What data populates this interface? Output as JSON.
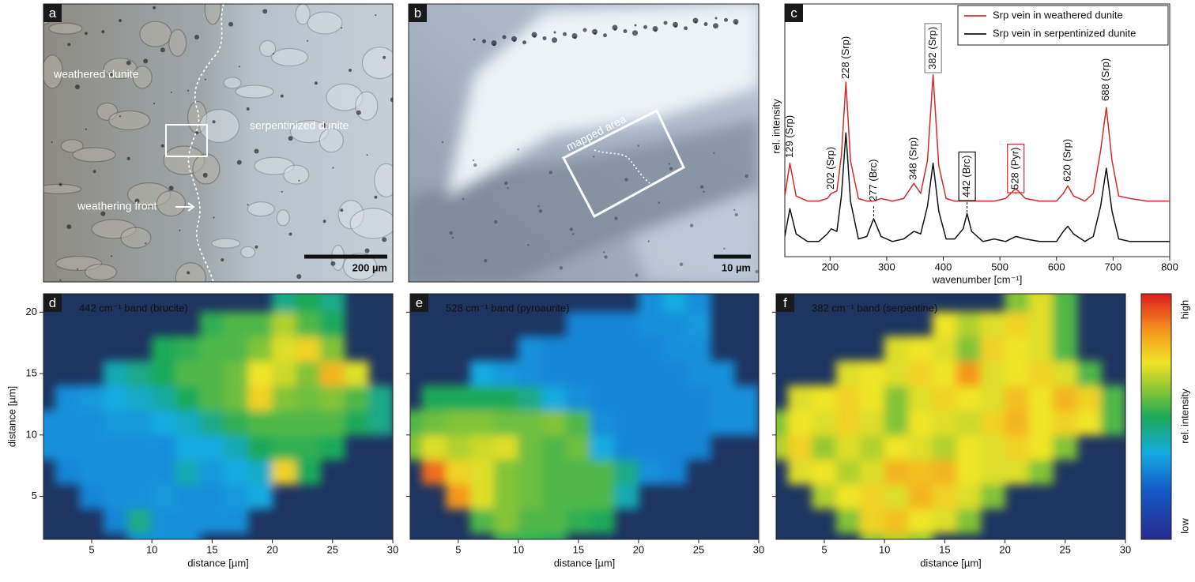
{
  "images": [
    {
      "label": "a",
      "annotations": [
        "weathered dunite",
        "serpentinized dunite",
        "weathering front"
      ],
      "scale_bar": "200 µm"
    },
    {
      "label": "b",
      "annotations": [
        "mapped area"
      ],
      "scale_bar": "10 µm"
    }
  ],
  "chart_data": [
    {
      "type": "line",
      "label": "c",
      "xlabel": "wavenumber [cm⁻¹]",
      "ylabel": "rel. intensity",
      "xlim": [
        120,
        800
      ],
      "xticks": [
        200,
        300,
        400,
        500,
        600,
        700,
        800
      ],
      "ylim": [
        0,
        100
      ],
      "legend": "top-right",
      "x": [
        120,
        129,
        140,
        160,
        180,
        195,
        202,
        212,
        220,
        228,
        236,
        250,
        265,
        277,
        290,
        310,
        330,
        348,
        360,
        372,
        382,
        392,
        405,
        420,
        435,
        442,
        450,
        470,
        490,
        510,
        528,
        545,
        570,
        600,
        612,
        620,
        630,
        650,
        665,
        678,
        688,
        698,
        710,
        730,
        760,
        800
      ],
      "series": [
        {
          "name": "Srp vein in weathered dunite",
          "color": "#d42a2a",
          "values": [
            24,
            37,
            24,
            22,
            22,
            23,
            25,
            26,
            40,
            69,
            38,
            23,
            22,
            22,
            23,
            22,
            23,
            29,
            25,
            38,
            72,
            36,
            23,
            22,
            22,
            22,
            22,
            22,
            22,
            23,
            27,
            23,
            22,
            22,
            25,
            28,
            24,
            22,
            25,
            42,
            59,
            38,
            24,
            23,
            22,
            22
          ]
        },
        {
          "name": "Srp vein in serpentinized dunite",
          "color": "#111111",
          "values": [
            8,
            19,
            9,
            6,
            6,
            9,
            11,
            10,
            24,
            49,
            22,
            7,
            8,
            15,
            8,
            6,
            7,
            10,
            9,
            20,
            37,
            18,
            7,
            7,
            11,
            17,
            10,
            6,
            7,
            6,
            8,
            7,
            6,
            6,
            10,
            12,
            9,
            6,
            8,
            20,
            35,
            18,
            7,
            6,
            6,
            6
          ]
        }
      ],
      "annotations": [
        {
          "text": "129 (Srp)",
          "x": 129,
          "color": "#8a8a8a"
        },
        {
          "text": "202 (Srp)",
          "x": 202,
          "color": "#8a8a8a"
        },
        {
          "text": "228 (Srp)",
          "x": 228,
          "color": "#8a8a8a"
        },
        {
          "text": "277 (Brc)",
          "x": 277,
          "color": "#111111",
          "dashed": true
        },
        {
          "text": "348 (Srp)",
          "x": 348,
          "color": "#8a8a8a"
        },
        {
          "text": "382 (Srp)",
          "x": 382,
          "color": "#8a8a8a",
          "boxed": true
        },
        {
          "text": "442 (Brc)",
          "x": 442,
          "color": "#111111",
          "boxed": true,
          "dashed": true
        },
        {
          "text": "528 (Pyr)",
          "x": 528,
          "color": "#d42a2a",
          "boxed": true,
          "dashed": true
        },
        {
          "text": "620 (Srp)",
          "x": 620,
          "color": "#8a8a8a"
        },
        {
          "text": "688 (Srp)",
          "x": 688,
          "color": "#8a8a8a"
        }
      ]
    },
    {
      "type": "heatmap",
      "label": "d",
      "title": "442 cm⁻¹ band (brucite)",
      "xlabel": "distance [µm]",
      "ylabel": "distance [µm]",
      "xlim": [
        1,
        30
      ],
      "ylim": [
        1.5,
        21.5
      ],
      "xticks": [
        5,
        10,
        15,
        20,
        25,
        30
      ],
      "yticks": [
        5,
        10,
        15,
        20
      ],
      "ytick_labels": true,
      "zlim": [
        0,
        1
      ],
      "x": [
        1,
        3,
        5,
        7,
        9,
        11,
        13,
        15,
        17,
        19,
        21,
        23,
        25,
        27,
        29
      ],
      "y": [
        1,
        3,
        5,
        7,
        9,
        11,
        13,
        15,
        17,
        19,
        21
      ],
      "z": [
        [
          null,
          null,
          null,
          null,
          0.3,
          0.3,
          0.3,
          null,
          null,
          null,
          null,
          null,
          null,
          null,
          null
        ],
        [
          null,
          null,
          null,
          0.28,
          0.45,
          0.3,
          0.3,
          0.3,
          0.3,
          null,
          null,
          null,
          null,
          null,
          null
        ],
        [
          null,
          null,
          0.28,
          0.3,
          0.3,
          0.32,
          0.3,
          0.3,
          0.32,
          0.35,
          null,
          null,
          null,
          null,
          null
        ],
        [
          null,
          0.28,
          0.3,
          0.3,
          0.3,
          0.3,
          0.4,
          0.32,
          0.35,
          0.38,
          0.75,
          0.5,
          null,
          null,
          null
        ],
        [
          0.3,
          0.3,
          0.3,
          0.3,
          0.3,
          0.3,
          0.35,
          0.35,
          0.4,
          0.5,
          0.52,
          0.52,
          0.5,
          null,
          null
        ],
        [
          0.3,
          0.3,
          0.3,
          0.32,
          0.32,
          0.35,
          0.38,
          0.45,
          0.52,
          0.55,
          0.55,
          0.55,
          0.55,
          0.5,
          0.45
        ],
        [
          null,
          0.3,
          0.32,
          0.35,
          0.38,
          0.42,
          0.5,
          0.55,
          0.58,
          0.75,
          0.6,
          0.58,
          0.6,
          0.55,
          0.45
        ],
        [
          null,
          null,
          null,
          0.4,
          0.45,
          0.5,
          0.55,
          0.55,
          0.58,
          0.72,
          0.68,
          0.6,
          0.8,
          0.7,
          null
        ],
        [
          null,
          null,
          null,
          null,
          null,
          0.5,
          0.52,
          0.55,
          0.55,
          0.6,
          0.7,
          0.75,
          0.6,
          null,
          null
        ],
        [
          null,
          null,
          null,
          null,
          null,
          null,
          null,
          0.52,
          0.55,
          0.55,
          0.65,
          0.55,
          0.5,
          null,
          null
        ],
        [
          null,
          null,
          null,
          null,
          null,
          null,
          null,
          null,
          null,
          null,
          0.45,
          0.5,
          0.45,
          null,
          null
        ]
      ]
    },
    {
      "type": "heatmap",
      "label": "e",
      "title": "528 cm⁻¹ band (pyroaurite)",
      "xlabel": "distance [µm]",
      "xlim": [
        1,
        30
      ],
      "ylim": [
        1.5,
        21.5
      ],
      "xticks": [
        5,
        10,
        15,
        20,
        25,
        30
      ],
      "yticks": [
        5,
        10,
        15,
        20
      ],
      "ytick_labels": false,
      "zlim": [
        0,
        1
      ],
      "x": [
        1,
        3,
        5,
        7,
        9,
        11,
        13,
        15,
        17,
        19,
        21,
        23,
        25,
        27,
        29
      ],
      "y": [
        1,
        3,
        5,
        7,
        9,
        11,
        13,
        15,
        17,
        19,
        21
      ],
      "z": [
        [
          null,
          null,
          null,
          null,
          0.5,
          0.52,
          0.5,
          null,
          null,
          null,
          null,
          null,
          null,
          null,
          null
        ],
        [
          null,
          null,
          null,
          0.55,
          0.6,
          0.55,
          0.55,
          0.52,
          0.5,
          null,
          null,
          null,
          null,
          null,
          null
        ],
        [
          null,
          null,
          0.85,
          0.7,
          0.6,
          0.58,
          0.55,
          0.55,
          0.55,
          0.4,
          null,
          null,
          null,
          null,
          null
        ],
        [
          null,
          0.9,
          0.75,
          0.7,
          0.6,
          0.58,
          0.55,
          0.55,
          0.55,
          0.45,
          0.3,
          0.28,
          null,
          null,
          null
        ],
        [
          0.6,
          0.7,
          0.65,
          0.68,
          0.7,
          0.58,
          0.55,
          0.58,
          0.35,
          0.28,
          0.28,
          0.28,
          0.28,
          null,
          null
        ],
        [
          0.55,
          0.58,
          0.6,
          0.6,
          0.58,
          0.58,
          0.6,
          0.55,
          0.3,
          0.28,
          0.28,
          0.28,
          0.28,
          0.3,
          0.3
        ],
        [
          null,
          0.5,
          0.5,
          0.5,
          0.5,
          0.45,
          0.35,
          0.3,
          0.28,
          0.28,
          0.28,
          0.28,
          0.28,
          0.3,
          0.3
        ],
        [
          null,
          null,
          null,
          0.35,
          0.32,
          0.3,
          0.28,
          0.28,
          0.28,
          0.28,
          0.28,
          0.28,
          0.3,
          0.3,
          null
        ],
        [
          null,
          null,
          null,
          null,
          null,
          0.3,
          0.28,
          0.28,
          0.28,
          0.28,
          0.28,
          0.3,
          0.3,
          null,
          null
        ],
        [
          null,
          null,
          null,
          null,
          null,
          null,
          null,
          0.28,
          0.28,
          0.28,
          0.3,
          0.3,
          0.32,
          null,
          null
        ],
        [
          null,
          null,
          null,
          null,
          null,
          null,
          null,
          null,
          null,
          null,
          0.3,
          0.35,
          0.3,
          null,
          null
        ]
      ]
    },
    {
      "type": "heatmap",
      "label": "f",
      "title": "382 cm⁻¹ band (serpentine)",
      "xlabel": "distance [µm]",
      "xlim": [
        1,
        30
      ],
      "ylim": [
        1.5,
        21.5
      ],
      "xticks": [
        5,
        10,
        15,
        20,
        25,
        30
      ],
      "yticks": [
        5,
        10,
        15,
        20
      ],
      "ytick_labels": false,
      "zlim": [
        0,
        1
      ],
      "x": [
        1,
        3,
        5,
        7,
        9,
        11,
        13,
        15,
        17,
        19,
        21,
        23,
        25,
        27,
        29
      ],
      "y": [
        1,
        3,
        5,
        7,
        9,
        11,
        13,
        15,
        17,
        19,
        21
      ],
      "z": [
        [
          null,
          null,
          null,
          null,
          0.6,
          0.65,
          0.6,
          null,
          null,
          null,
          null,
          null,
          null,
          null,
          null
        ],
        [
          null,
          null,
          null,
          0.6,
          0.75,
          0.78,
          0.72,
          0.7,
          0.6,
          null,
          null,
          null,
          null,
          null,
          null
        ],
        [
          null,
          null,
          0.65,
          0.72,
          0.75,
          0.7,
          0.8,
          0.75,
          0.7,
          0.6,
          null,
          null,
          null,
          null,
          null
        ],
        [
          null,
          0.7,
          0.72,
          0.65,
          0.7,
          0.8,
          0.78,
          0.8,
          0.72,
          0.7,
          0.7,
          0.6,
          null,
          null,
          null
        ],
        [
          0.65,
          0.75,
          0.62,
          0.7,
          0.65,
          0.72,
          0.7,
          0.65,
          0.72,
          0.7,
          0.75,
          0.72,
          0.6,
          null,
          null
        ],
        [
          0.6,
          0.72,
          0.7,
          0.75,
          0.7,
          0.6,
          0.72,
          0.7,
          0.68,
          0.75,
          0.8,
          0.72,
          0.75,
          0.72,
          0.55
        ],
        [
          null,
          0.7,
          0.72,
          0.75,
          0.72,
          0.6,
          0.7,
          0.75,
          0.72,
          0.7,
          0.78,
          0.72,
          0.8,
          0.75,
          0.55
        ],
        [
          null,
          null,
          null,
          0.7,
          0.72,
          0.7,
          0.75,
          0.72,
          0.85,
          0.7,
          0.72,
          0.75,
          0.7,
          0.55,
          null
        ],
        [
          null,
          null,
          null,
          null,
          null,
          0.7,
          0.72,
          0.7,
          0.6,
          0.75,
          0.72,
          0.7,
          0.55,
          null,
          null
        ],
        [
          null,
          null,
          null,
          null,
          null,
          null,
          null,
          0.72,
          0.65,
          0.7,
          0.75,
          0.7,
          0.55,
          null,
          null
        ],
        [
          null,
          null,
          null,
          null,
          null,
          null,
          null,
          null,
          null,
          null,
          0.6,
          0.7,
          0.55,
          null,
          null
        ]
      ]
    }
  ],
  "colorbar": {
    "high": "high",
    "mid": "rel. intensity",
    "low": "low"
  }
}
